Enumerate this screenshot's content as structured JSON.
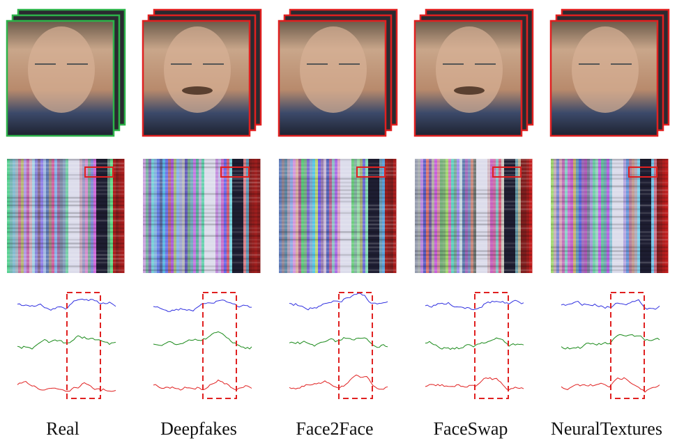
{
  "labels": [
    "Real",
    "Deepfakes",
    "Face2Face",
    "FaceSwap",
    "NeuralTextures"
  ]
}
